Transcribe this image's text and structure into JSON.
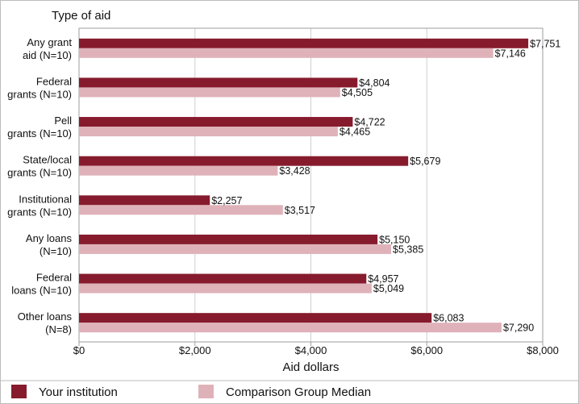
{
  "chart_data": {
    "type": "bar",
    "orientation": "horizontal",
    "y_axis_title": "Type of aid",
    "xlabel": "Aid dollars",
    "xlim": [
      0,
      8000
    ],
    "x_ticks": [
      0,
      2000,
      4000,
      6000,
      8000
    ],
    "x_tick_labels": [
      "$0",
      "$2,000",
      "$4,000",
      "$6,000",
      "$8,000"
    ],
    "grid": true,
    "legend_position": "bottom",
    "categories": [
      [
        "Any grant",
        "aid (N=10)"
      ],
      [
        "Federal",
        "grants (N=10)"
      ],
      [
        "Pell",
        "grants (N=10)"
      ],
      [
        "State/local",
        "grants (N=10)"
      ],
      [
        "Institutional",
        "grants (N=10)"
      ],
      [
        "Any loans",
        "(N=10)"
      ],
      [
        "Federal",
        "loans (N=10)"
      ],
      [
        "Other loans",
        "(N=8)"
      ]
    ],
    "series": [
      {
        "name": "Your institution",
        "color": "#861b2d",
        "values": [
          7751,
          4804,
          4722,
          5679,
          2257,
          5150,
          4957,
          6083
        ],
        "labels": [
          "$7,751",
          "$4,804",
          "$4,722",
          "$5,679",
          "$2,257",
          "$5,150",
          "$4,957",
          "$6,083"
        ]
      },
      {
        "name": "Comparison Group Median",
        "color": "#dfb2b9",
        "values": [
          7146,
          4505,
          4465,
          3428,
          3517,
          5385,
          5049,
          7290
        ],
        "labels": [
          "$7,146",
          "$4,505",
          "$4,465",
          "$3,428",
          "$3,517",
          "$5,385",
          "$5,049",
          "$7,290"
        ]
      }
    ]
  }
}
